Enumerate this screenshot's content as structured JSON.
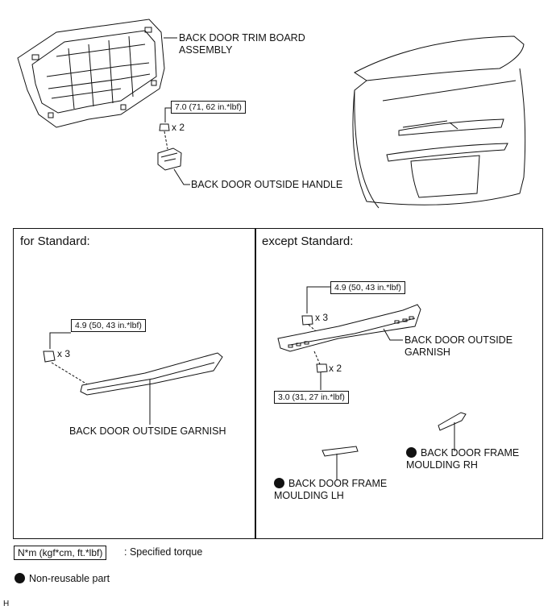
{
  "top": {
    "trim_board_label": "BACK DOOR TRIM BOARD\nASSEMBLY",
    "handle_torque": "7.0 (71, 62 in.*lbf)",
    "handle_qty": "x 2",
    "handle_label": "BACK DOOR OUTSIDE HANDLE"
  },
  "left_panel": {
    "title": "for Standard:",
    "torque": "4.9 (50, 43 in.*lbf)",
    "qty": "x 3",
    "garnish_label": "BACK DOOR OUTSIDE GARNISH"
  },
  "right_panel": {
    "title": "except Standard:",
    "torque_top": "4.9 (50, 43 in.*lbf)",
    "qty_top": "x 3",
    "garnish_label": "BACK DOOR OUTSIDE\nGARNISH",
    "qty_bottom": "x 2",
    "torque_bottom": "3.0 (31, 27 in.*lbf)",
    "moulding_rh_label": "BACK DOOR FRAME\nMOULDING RH",
    "moulding_lh_label": "BACK DOOR FRAME\nMOULDING LH"
  },
  "legend": {
    "torque_unit": "N*m (kgf*cm, ft.*lbf)",
    "torque_text": ": Specified torque",
    "nonreusable_text": "Non-reusable part"
  },
  "footer_code": "H"
}
